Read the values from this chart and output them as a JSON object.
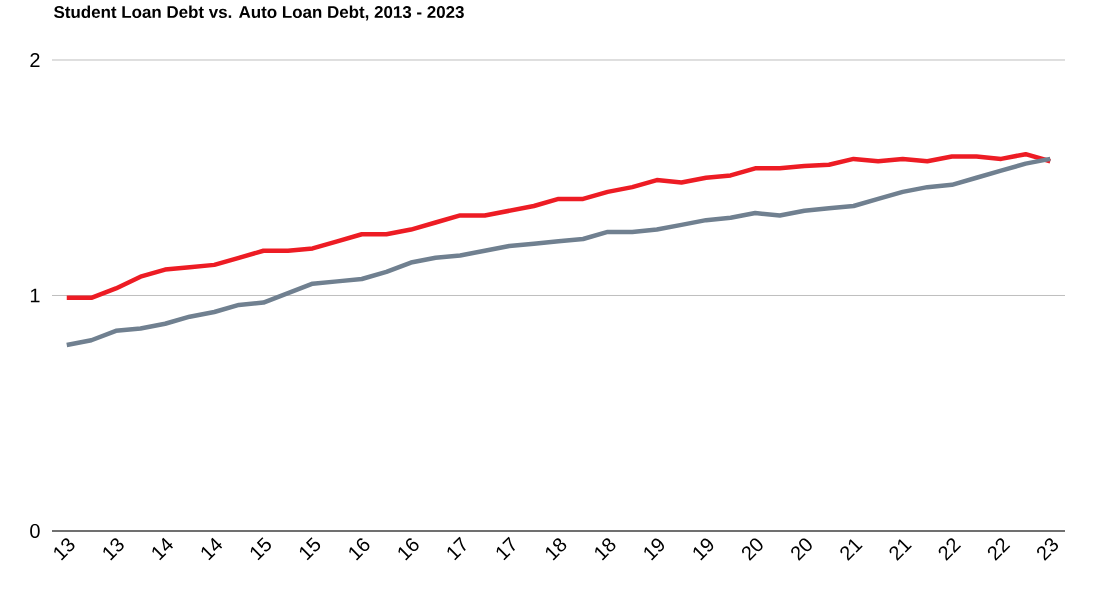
{
  "chart_data": {
    "type": "line",
    "title": "Student Loan Debt vs. Auto Loan Debt, 2013 - 2023",
    "categories": [
      "13",
      null,
      "13",
      null,
      "14",
      null,
      "14",
      null,
      "15",
      null,
      "15",
      null,
      "16",
      null,
      "16",
      null,
      "17",
      null,
      "17",
      null,
      "18",
      null,
      "18",
      null,
      "19",
      null,
      "19",
      null,
      "20",
      null,
      "20",
      null,
      "21",
      null,
      "21",
      null,
      "22",
      null,
      "22",
      null,
      "23"
    ],
    "series": [
      {
        "color": "#ed1c24",
        "values": [
          0.99,
          0.99,
          1.03,
          1.08,
          1.11,
          1.12,
          1.13,
          1.16,
          1.19,
          1.19,
          1.2,
          1.23,
          1.26,
          1.26,
          1.28,
          1.31,
          1.34,
          1.34,
          1.36,
          1.38,
          1.41,
          1.41,
          1.44,
          1.46,
          1.49,
          1.48,
          1.5,
          1.51,
          1.54,
          1.54,
          1.55,
          1.555,
          1.58,
          1.57,
          1.58,
          1.57,
          1.59,
          1.59,
          1.58,
          1.6,
          1.57
        ]
      },
      {
        "color": "#708090",
        "values": [
          0.79,
          0.81,
          0.85,
          0.86,
          0.88,
          0.91,
          0.93,
          0.96,
          0.97,
          1.01,
          1.05,
          1.06,
          1.07,
          1.1,
          1.14,
          1.16,
          1.17,
          1.19,
          1.21,
          1.22,
          1.23,
          1.24,
          1.27,
          1.27,
          1.28,
          1.3,
          1.32,
          1.33,
          1.35,
          1.34,
          1.36,
          1.37,
          1.38,
          1.41,
          1.44,
          1.46,
          1.47,
          1.5,
          1.53,
          1.56,
          1.58
        ]
      }
    ],
    "ylim": [
      0,
      2
    ],
    "yticks": [
      0,
      1,
      2
    ],
    "grid": "y",
    "marker": "none",
    "line_style": "solid"
  }
}
